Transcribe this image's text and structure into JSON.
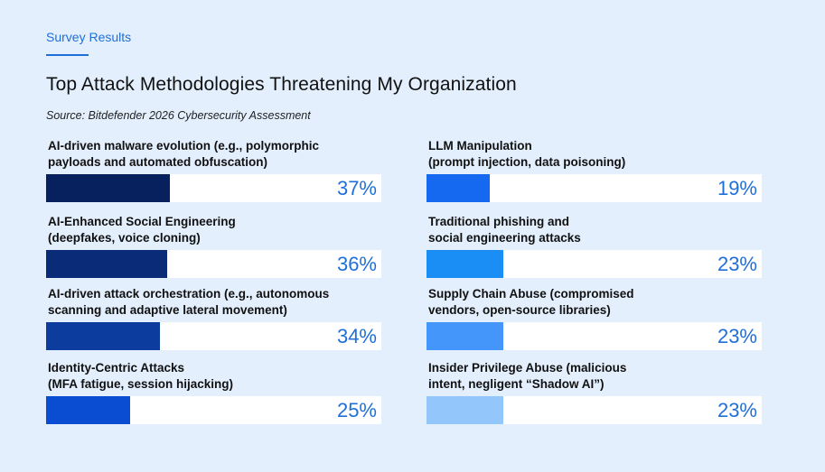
{
  "header": {
    "eyebrow": "Survey Results",
    "title": "Top Attack Methodologies Threatening My Organization",
    "source": "Source: Bitdefender 2026 Cybersecurity Assessment"
  },
  "colors": {
    "background": "#e3effd",
    "accent": "#1f6fd8",
    "track": "#ffffff"
  },
  "chart_data": {
    "type": "bar",
    "orientation": "horizontal",
    "xlim": [
      0,
      100
    ],
    "unit": "%",
    "items": [
      {
        "label_line1": "AI-driven malware evolution (e.g., polymorphic",
        "label_line2": "payloads and automated obfuscation)",
        "value": 37,
        "display": "37%",
        "color": "#06215e",
        "column": 0,
        "row": 0
      },
      {
        "label_line1": "AI-Enhanced Social Engineering",
        "label_line2": "(deepfakes, voice cloning)",
        "value": 36,
        "display": "36%",
        "color": "#0a2c78",
        "column": 0,
        "row": 1
      },
      {
        "label_line1": "AI-driven attack orchestration (e.g., autonomous",
        "label_line2": "scanning and adaptive lateral movement)",
        "value": 34,
        "display": "34%",
        "color": "#0c3c9e",
        "column": 0,
        "row": 2
      },
      {
        "label_line1": "Identity-Centric Attacks",
        "label_line2": "(MFA fatigue, session hijacking)",
        "value": 25,
        "display": "25%",
        "color": "#0b4dd2",
        "column": 0,
        "row": 3
      },
      {
        "label_line1": "LLM Manipulation",
        "label_line2": "(prompt injection, data poisoning)",
        "value": 19,
        "display": "19%",
        "color": "#1569f0",
        "column": 1,
        "row": 0
      },
      {
        "label_line1": "Traditional phishing and",
        "label_line2": "social engineering attacks",
        "value": 23,
        "display": "23%",
        "color": "#1b8ef5",
        "column": 1,
        "row": 1
      },
      {
        "label_line1": "Supply Chain Abuse (compromised",
        "label_line2": "vendors, open-source libraries)",
        "value": 23,
        "display": "23%",
        "color": "#4496fb",
        "column": 1,
        "row": 2
      },
      {
        "label_line1": "Insider Privilege Abuse (malicious",
        "label_line2": "intent, negligent “Shadow AI”)",
        "value": 23,
        "display": "23%",
        "color": "#93c7fb",
        "column": 1,
        "row": 3
      }
    ]
  }
}
